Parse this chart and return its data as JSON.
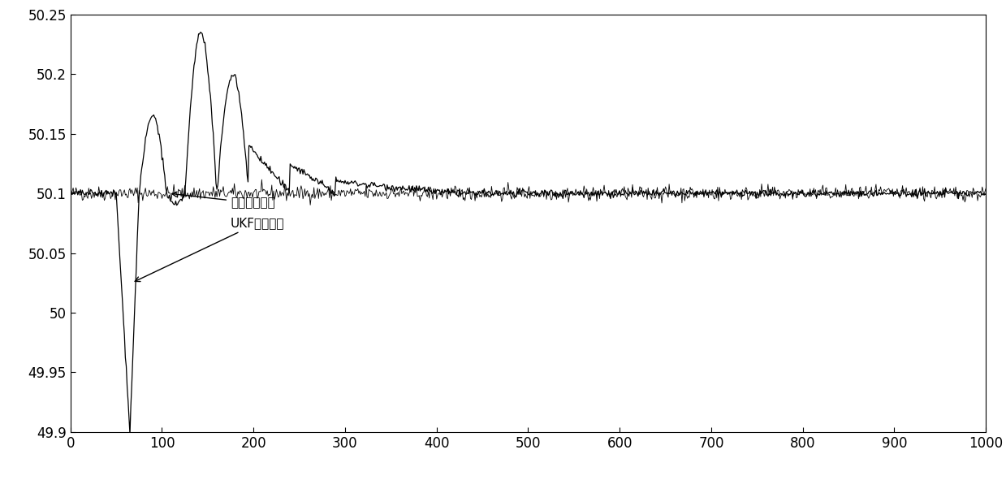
{
  "xlim": [
    0,
    1000
  ],
  "ylim": [
    49.9,
    50.25
  ],
  "yticks": [
    49.9,
    49.95,
    50.0,
    50.05,
    50.1,
    50.15,
    50.2,
    50.25
  ],
  "xticks": [
    0,
    100,
    200,
    300,
    400,
    500,
    600,
    700,
    800,
    900,
    1000
  ],
  "line_color": "#000000",
  "background_color": "#ffffff",
  "annotation1": "实际基波频率",
  "annotation2": "UKF基波频率",
  "seed": 42
}
